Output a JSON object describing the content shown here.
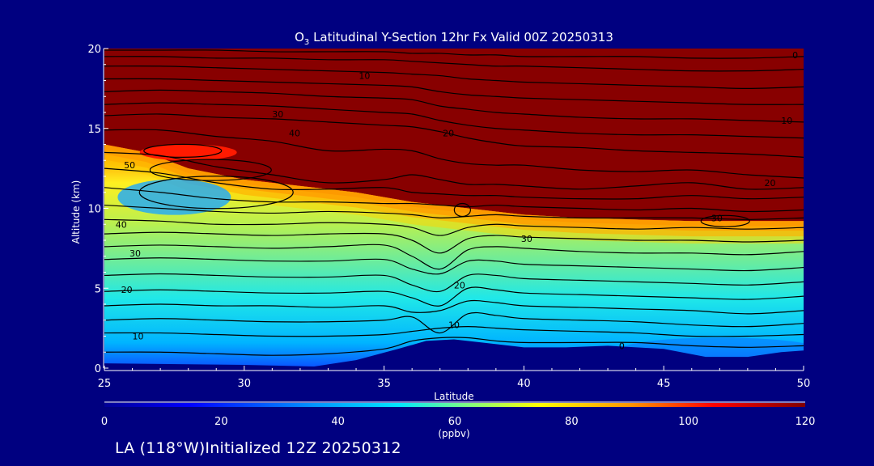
{
  "chart_data": {
    "type": "heatmap",
    "title_prefix": "O",
    "title_sub": "3",
    "title_rest": " Latitudinal Y-Section 12hr  Fx Valid 00Z 20250313",
    "xlabel": "Latitude",
    "ylabel": "Altitude (km)",
    "xlim": [
      25,
      50
    ],
    "ylim": [
      0,
      20
    ],
    "x_ticks": [
      "25",
      "30",
      "35",
      "40",
      "45",
      "50"
    ],
    "y_ticks": [
      "0",
      "5",
      "10",
      "15",
      "20"
    ],
    "colorbar": {
      "label": "(ppbv)",
      "range": [
        0,
        120
      ],
      "ticks": [
        "0",
        "20",
        "40",
        "60",
        "80",
        "100",
        "120"
      ]
    },
    "contour_labels": [
      {
        "text": "10",
        "x": 34.3,
        "y": 18.3
      },
      {
        "text": "30",
        "x": 31.2,
        "y": 15.9
      },
      {
        "text": "40",
        "x": 31.8,
        "y": 14.7
      },
      {
        "text": "50",
        "x": 25.9,
        "y": 12.7
      },
      {
        "text": "20",
        "x": 37.3,
        "y": 14.7
      },
      {
        "text": "0",
        "x": 49.7,
        "y": 19.6
      },
      {
        "text": "10",
        "x": 49.4,
        "y": 15.5
      },
      {
        "text": "20",
        "x": 48.8,
        "y": 11.6
      },
      {
        "text": "30",
        "x": 46.9,
        "y": 9.4
      },
      {
        "text": "30",
        "x": 40.1,
        "y": 8.1
      },
      {
        "text": "40",
        "x": 25.6,
        "y": 9.0
      },
      {
        "text": "30",
        "x": 26.1,
        "y": 7.2
      },
      {
        "text": "20",
        "x": 25.8,
        "y": 4.9
      },
      {
        "text": "20",
        "x": 37.7,
        "y": 5.2
      },
      {
        "text": "10",
        "x": 26.2,
        "y": 2.0
      },
      {
        "text": "10",
        "x": 37.5,
        "y": 2.7
      },
      {
        "text": "0",
        "x": 43.5,
        "y": 1.4
      }
    ],
    "terrain_km": [
      [
        25,
        0.3
      ],
      [
        30,
        0.2
      ],
      [
        32.5,
        0.1
      ],
      [
        34,
        0.5
      ],
      [
        35.5,
        1.2
      ],
      [
        36.5,
        1.7
      ],
      [
        37.5,
        1.8
      ],
      [
        38.5,
        1.6
      ],
      [
        40,
        1.3
      ],
      [
        41.5,
        1.3
      ],
      [
        43,
        1.4
      ],
      [
        45,
        1.2
      ],
      [
        46.5,
        0.7
      ],
      [
        48,
        0.7
      ],
      [
        49.2,
        1.0
      ],
      [
        50,
        1.1
      ]
    ],
    "tropopause_km": [
      [
        25,
        14.0
      ],
      [
        26.5,
        13.5
      ],
      [
        28,
        12.5
      ],
      [
        30,
        11.8
      ],
      [
        32,
        11.4
      ],
      [
        34,
        11.0
      ],
      [
        36,
        10.4
      ],
      [
        38,
        10.0
      ],
      [
        40,
        9.6
      ],
      [
        42,
        9.4
      ],
      [
        44,
        9.3
      ],
      [
        46,
        9.2
      ],
      [
        48,
        9.2
      ],
      [
        50,
        9.2
      ]
    ]
  },
  "footer_text": "LA (118°W)Initialized 12Z 20250312"
}
